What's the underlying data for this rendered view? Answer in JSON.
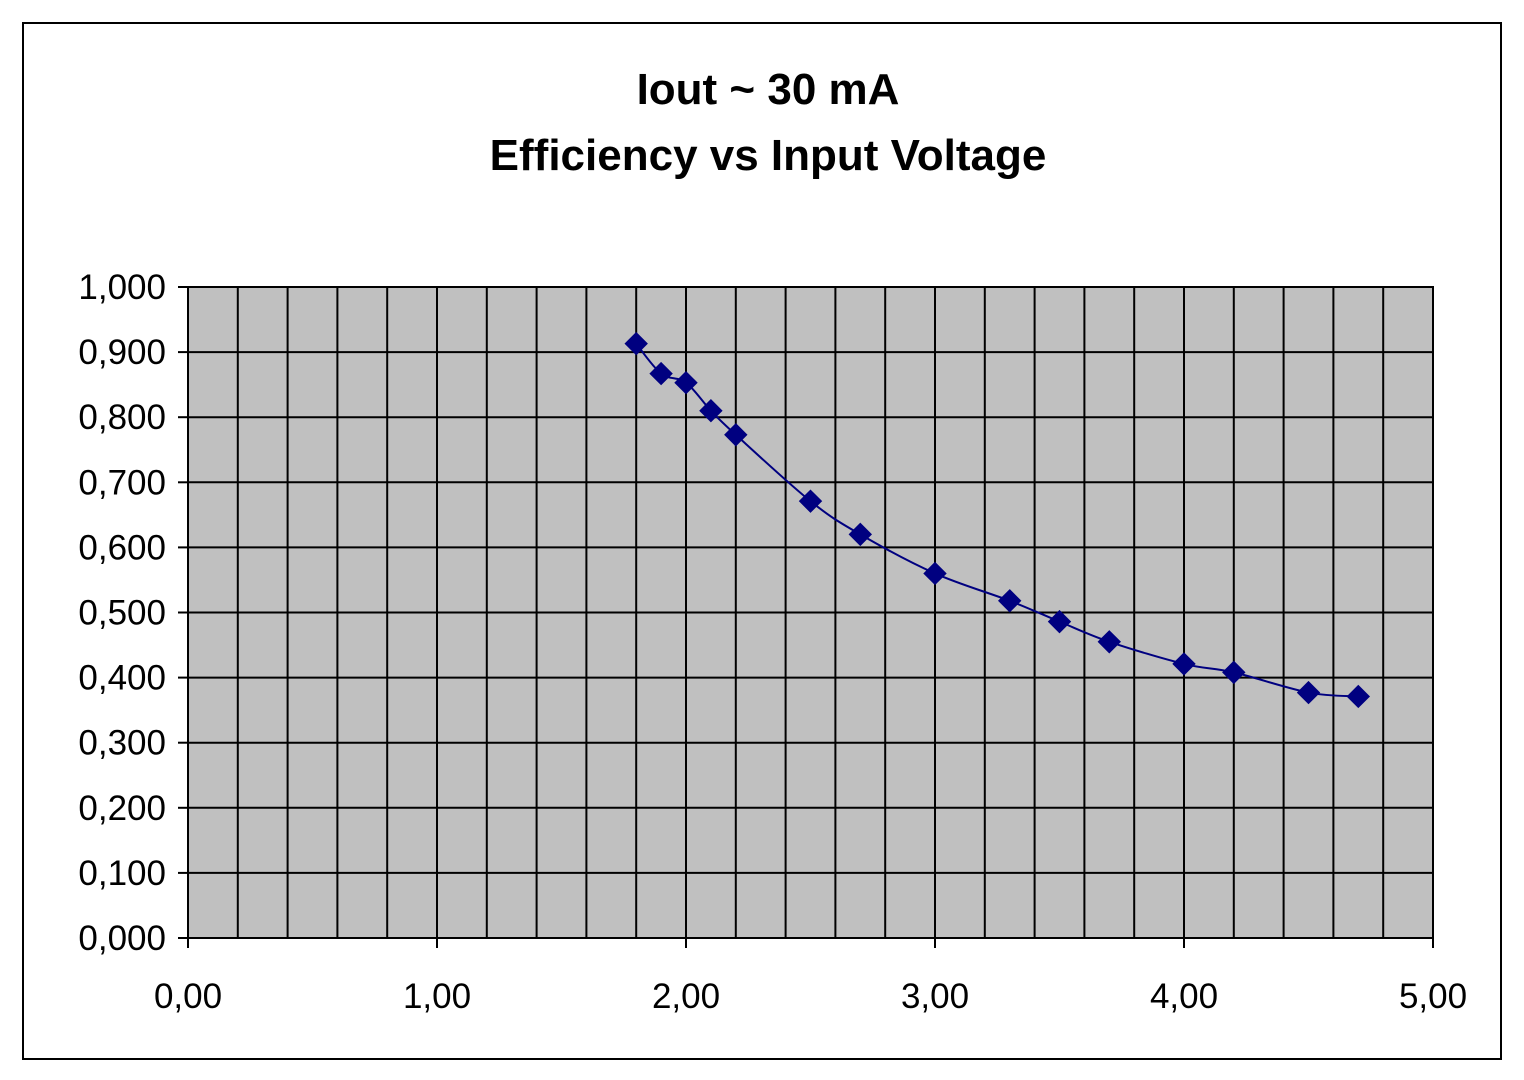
{
  "chart_data": {
    "type": "scatter",
    "title": "Iout ~ 30 mA",
    "subtitle": "Efficiency vs Input Voltage",
    "xlabel": "",
    "ylabel": "",
    "xlim": [
      0,
      5
    ],
    "ylim": [
      0,
      1
    ],
    "x_ticks": [
      "0,00",
      "1,00",
      "2,00",
      "3,00",
      "4,00",
      "5,00"
    ],
    "y_ticks": [
      "0,000",
      "0,100",
      "0,200",
      "0,300",
      "0,400",
      "0,500",
      "0,600",
      "0,700",
      "0,800",
      "0,900",
      "1,000"
    ],
    "grid": true,
    "plot_background": "#c0c0c0",
    "marker_color": "#000080",
    "line_color": "#000080",
    "series": [
      {
        "name": "Efficiency",
        "x": [
          1.8,
          1.9,
          2.0,
          2.1,
          2.2,
          2.5,
          2.7,
          3.0,
          3.3,
          3.5,
          3.7,
          4.0,
          4.2,
          4.5,
          4.7
        ],
        "y": [
          0.913,
          0.867,
          0.853,
          0.81,
          0.773,
          0.671,
          0.62,
          0.56,
          0.518,
          0.486,
          0.455,
          0.421,
          0.408,
          0.377,
          0.371
        ]
      }
    ]
  }
}
